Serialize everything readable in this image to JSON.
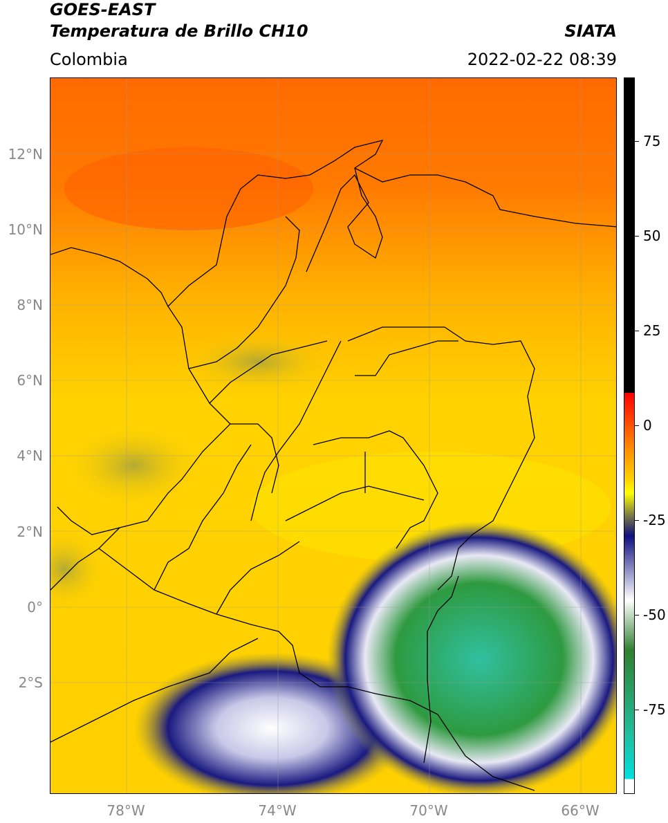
{
  "header": {
    "satellite": "GOES-EAST",
    "product": "Temperatura de Brillo CH10",
    "region": "Colombia",
    "agency": "SIATA",
    "datetime": "2022-02-22 08:39"
  },
  "map": {
    "lat_labels": [
      "12°N",
      "10°N",
      "8°N",
      "6°N",
      "4°N",
      "2°N",
      "0°",
      "2°S"
    ],
    "lon_labels": [
      "78°W",
      "74°W",
      "70°W",
      "66°W"
    ],
    "colors": {
      "warm_sea": "#ff6a00",
      "orange": "#ff9a00",
      "yellow": "#ffd400",
      "bright_yellow": "#ffe800",
      "olive": "#a0a040",
      "navy": "#1a1a80",
      "lavender": "#c8c8e8",
      "green": "#2e9a40",
      "teal": "#30c0a0"
    }
  },
  "colorbar": {
    "tick_labels": [
      "75",
      "50",
      "25",
      "0",
      "-25",
      "-50",
      "-75"
    ],
    "gradient_colors": [
      "#000000",
      "#ff0000",
      "#ff9000",
      "#ffd000",
      "#ffff00",
      "#808040",
      "#101080",
      "#ffffff",
      "#308030",
      "#20c0a0",
      "#00e0e0",
      "#ffffff"
    ]
  }
}
